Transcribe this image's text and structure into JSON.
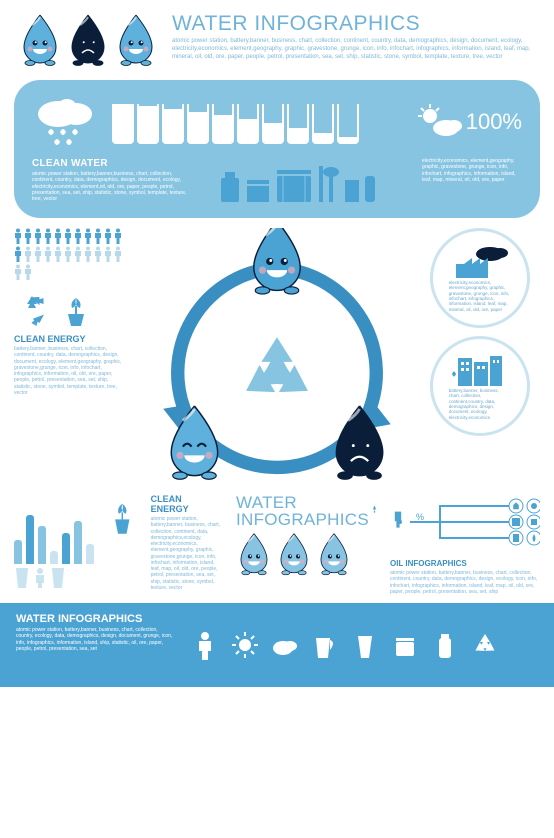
{
  "colors": {
    "light_blue": "#87c4e2",
    "mid_blue": "#4ba3d4",
    "dark_blue": "#1e5f8a",
    "navy": "#0a1e3a",
    "accent": "#6fb3d9",
    "text_light": "#7fb8da",
    "white": "#ffffff"
  },
  "header": {
    "title": "WATER INFOGRAPHICS",
    "body": "atomic power station, battery,banner, business, chart, collection, continent, country, data, demographics, design, document, ecology, electricity,economics, element,geography, graphic, gravestone, grunge, icon, info, infochart, infographics, information, island, leaf, map, mineral, oil, old, ore, paper, people, petrol, presentation, sea, set, ship, statistic, stone, symbol, template, texture, tree, vector",
    "drops": [
      {
        "color": "#5eb0dd",
        "face": "happy"
      },
      {
        "color": "#0a1e3a",
        "face": "sad"
      },
      {
        "color": "#5eb0dd",
        "face": "happy"
      }
    ]
  },
  "panel": {
    "glass_fills": [
      100,
      95,
      88,
      80,
      70,
      60,
      50,
      38,
      25,
      12
    ],
    "percent": "100%",
    "clean_water": {
      "title": "CLEAN WATER",
      "body": "atomic power station, battery,banner,business, chart, collection, continent, country, data, demographics, design, document, ecology, electricity,economics, element,oil, old, ore, paper, people, petrol, presentation, sea, set, ship, statistic, stone, symbol, template, texture, tree, vector"
    },
    "electricity": {
      "body": "electricity,economics, element,geography, graphic, gravestone, grunge, icon, info, infochart, infographics, information, island, leaf, map, mineral, oil, old, ore, paper"
    }
  },
  "left": {
    "people_count": 24,
    "clean_energy": {
      "title": "CLEAN ENERGY",
      "body": "battery,banner, business, chart, collection, continent, country, data, demographics, design, document, ecology, element,geography, graphic, gravestone,grunge, icon, info, infochart, infographics, information, oil, old, ore, paper, people, petrol, presentation, sea, set, ship, statistic, stone, symbol, template, texture, tree, vector"
    }
  },
  "cycle": {
    "drops": [
      {
        "color": "#4ba3d4",
        "face": "happy",
        "pos": "top"
      },
      {
        "color": "#5eb0dd",
        "face": "happy-closed",
        "pos": "bl"
      },
      {
        "color": "#0a1e3a",
        "face": "sad",
        "pos": "br"
      }
    ]
  },
  "right": {
    "circ1": {
      "body": "electricity,economics, element,geography, graphic, gravestone, grunge, icon, info, infochart, infographics, information, island, leaf, map, mineral, oil, old, ore, paper"
    },
    "circ2": {
      "body": "battery,banner, business, chart, collection, continent,country, data, demographics, design, document, ecology, electricity,economics"
    }
  },
  "lower": {
    "bars": {
      "values": [
        35,
        70,
        55,
        18,
        45,
        62,
        28
      ],
      "colors": [
        "#87c4e2",
        "#4ba3d4",
        "#87c4e2",
        "#c9e3f0",
        "#4ba3d4",
        "#87c4e2",
        "#c9e3f0"
      ]
    },
    "clean_energy2": {
      "title": "CLEAN ENERGY",
      "body": "atomic power station, battery,banner, business, chart, collection, continent, data, demographics,ecology, electricity,economics, element,geography, graphic, gravestone,grunge, icon, info, infochart, information, island, leaf, map, oil, old, ore, people, petrol, presentation, sea, set, ship, statistic, stone, symbol, texture, vector"
    },
    "water_inf": {
      "title_l1": "WATER",
      "title_l2": "INFOGRAPHICS"
    },
    "oil": {
      "title": "OIL INFOGRAPHICS",
      "body": "atomic power station, battery,banner, business, chart, collection, continent, country, data, demographics, design, ecology, icon, info, infochart, infographics, information, island, leaf, map, oil, old, ore, paper, people, petrol, presentation, sea, set, ship"
    }
  },
  "footer": {
    "title": "WATER INFOGRAPHICS",
    "body": "atomic power station, battery,banner, business, chart, collection, country, ecology, data, demographics, design, document, grunge, icon, info, infographics, information, island, ship, statistic, oil, ore, paper, people, petrol, presentation, sea, set"
  }
}
